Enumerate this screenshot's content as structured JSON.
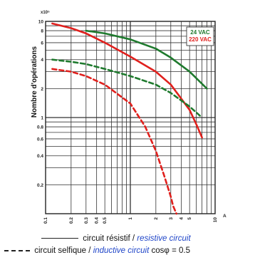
{
  "chart_data": {
    "type": "line",
    "y_scale": "log",
    "ylabel": "Nombre d'opérations",
    "y_multiplier": "x10⁵",
    "ylim": [
      0.1,
      10
    ],
    "y_ticks": [
      {
        "value": 10,
        "label": "10"
      },
      {
        "value": 8,
        "label": "8"
      },
      {
        "value": 6,
        "label": "6"
      },
      {
        "value": 4,
        "label": "4"
      },
      {
        "value": 2,
        "label": "2"
      },
      {
        "value": 1,
        "label": "1"
      },
      {
        "value": 0.8,
        "label": "0.8"
      },
      {
        "value": 0.6,
        "label": "0.6"
      },
      {
        "value": 0.4,
        "label": "0.4"
      },
      {
        "value": 0.2,
        "label": "0.2"
      }
    ],
    "x_scale": "log",
    "xlim": [
      0.1,
      10
    ],
    "x_ticks": [
      {
        "value": 0.1,
        "label": "0.1"
      },
      {
        "value": 0.2,
        "label": "0.2"
      },
      {
        "value": 0.3,
        "label": "0.3"
      },
      {
        "value": 0.4,
        "label": "0.4"
      },
      {
        "value": 0.5,
        "label": "0.5"
      },
      {
        "value": 1,
        "label": "1"
      },
      {
        "value": 2,
        "label": "2"
      },
      {
        "value": 3,
        "label": "3"
      },
      {
        "value": 4,
        "label": "4"
      },
      {
        "value": 5,
        "label": "5"
      },
      {
        "value": 10,
        "label": "10"
      }
    ],
    "x_unit": "A",
    "grid": true,
    "legend_entries": [
      {
        "name": "24 VAC",
        "color": "#1f7a2e"
      },
      {
        "name": "220 VAC",
        "color": "#e0201d"
      }
    ],
    "series": [
      {
        "voltage": "24 VAC",
        "load": "resistive",
        "color": "#1f7a2e",
        "dash": false,
        "x": [
          0.3,
          0.5,
          1,
          2,
          3,
          5,
          8
        ],
        "y": [
          8,
          7.5,
          6.5,
          5.2,
          4.2,
          3,
          2
        ]
      },
      {
        "voltage": "220 VAC",
        "load": "resistive",
        "color": "#e0201d",
        "dash": false,
        "x": [
          0.12,
          0.2,
          0.3,
          0.5,
          1,
          2,
          3,
          5,
          6,
          7
        ],
        "y": [
          9.5,
          8.5,
          7.5,
          6,
          4.3,
          3,
          2.2,
          1.2,
          0.85,
          0.62
        ]
      },
      {
        "voltage": "24 VAC",
        "load": "inductive",
        "color": "#1f7a2e",
        "dash": true,
        "x": [
          0.12,
          0.2,
          0.3,
          0.5,
          1,
          2,
          3,
          5,
          7
        ],
        "y": [
          4,
          3.8,
          3.6,
          3.2,
          2.7,
          2.2,
          1.8,
          1.3,
          1
        ]
      },
      {
        "voltage": "220 VAC",
        "load": "inductive",
        "color": "#e0201d",
        "dash": true,
        "x": [
          0.12,
          0.2,
          0.3,
          0.5,
          1,
          1.5,
          2,
          2.5,
          3,
          3.2,
          3.5
        ],
        "y": [
          3.2,
          3,
          2.7,
          2.2,
          1.4,
          0.8,
          0.45,
          0.25,
          0.15,
          0.12,
          0.1
        ]
      }
    ]
  },
  "legend_text": {
    "resistive_fr": "circuit résistif",
    "separator": "/",
    "resistive_en": "resistive circuit",
    "inductive_fr": "circuit selfique",
    "inductive_en": "inductive circuit",
    "cos_phi": "cosφ = 0.5"
  }
}
